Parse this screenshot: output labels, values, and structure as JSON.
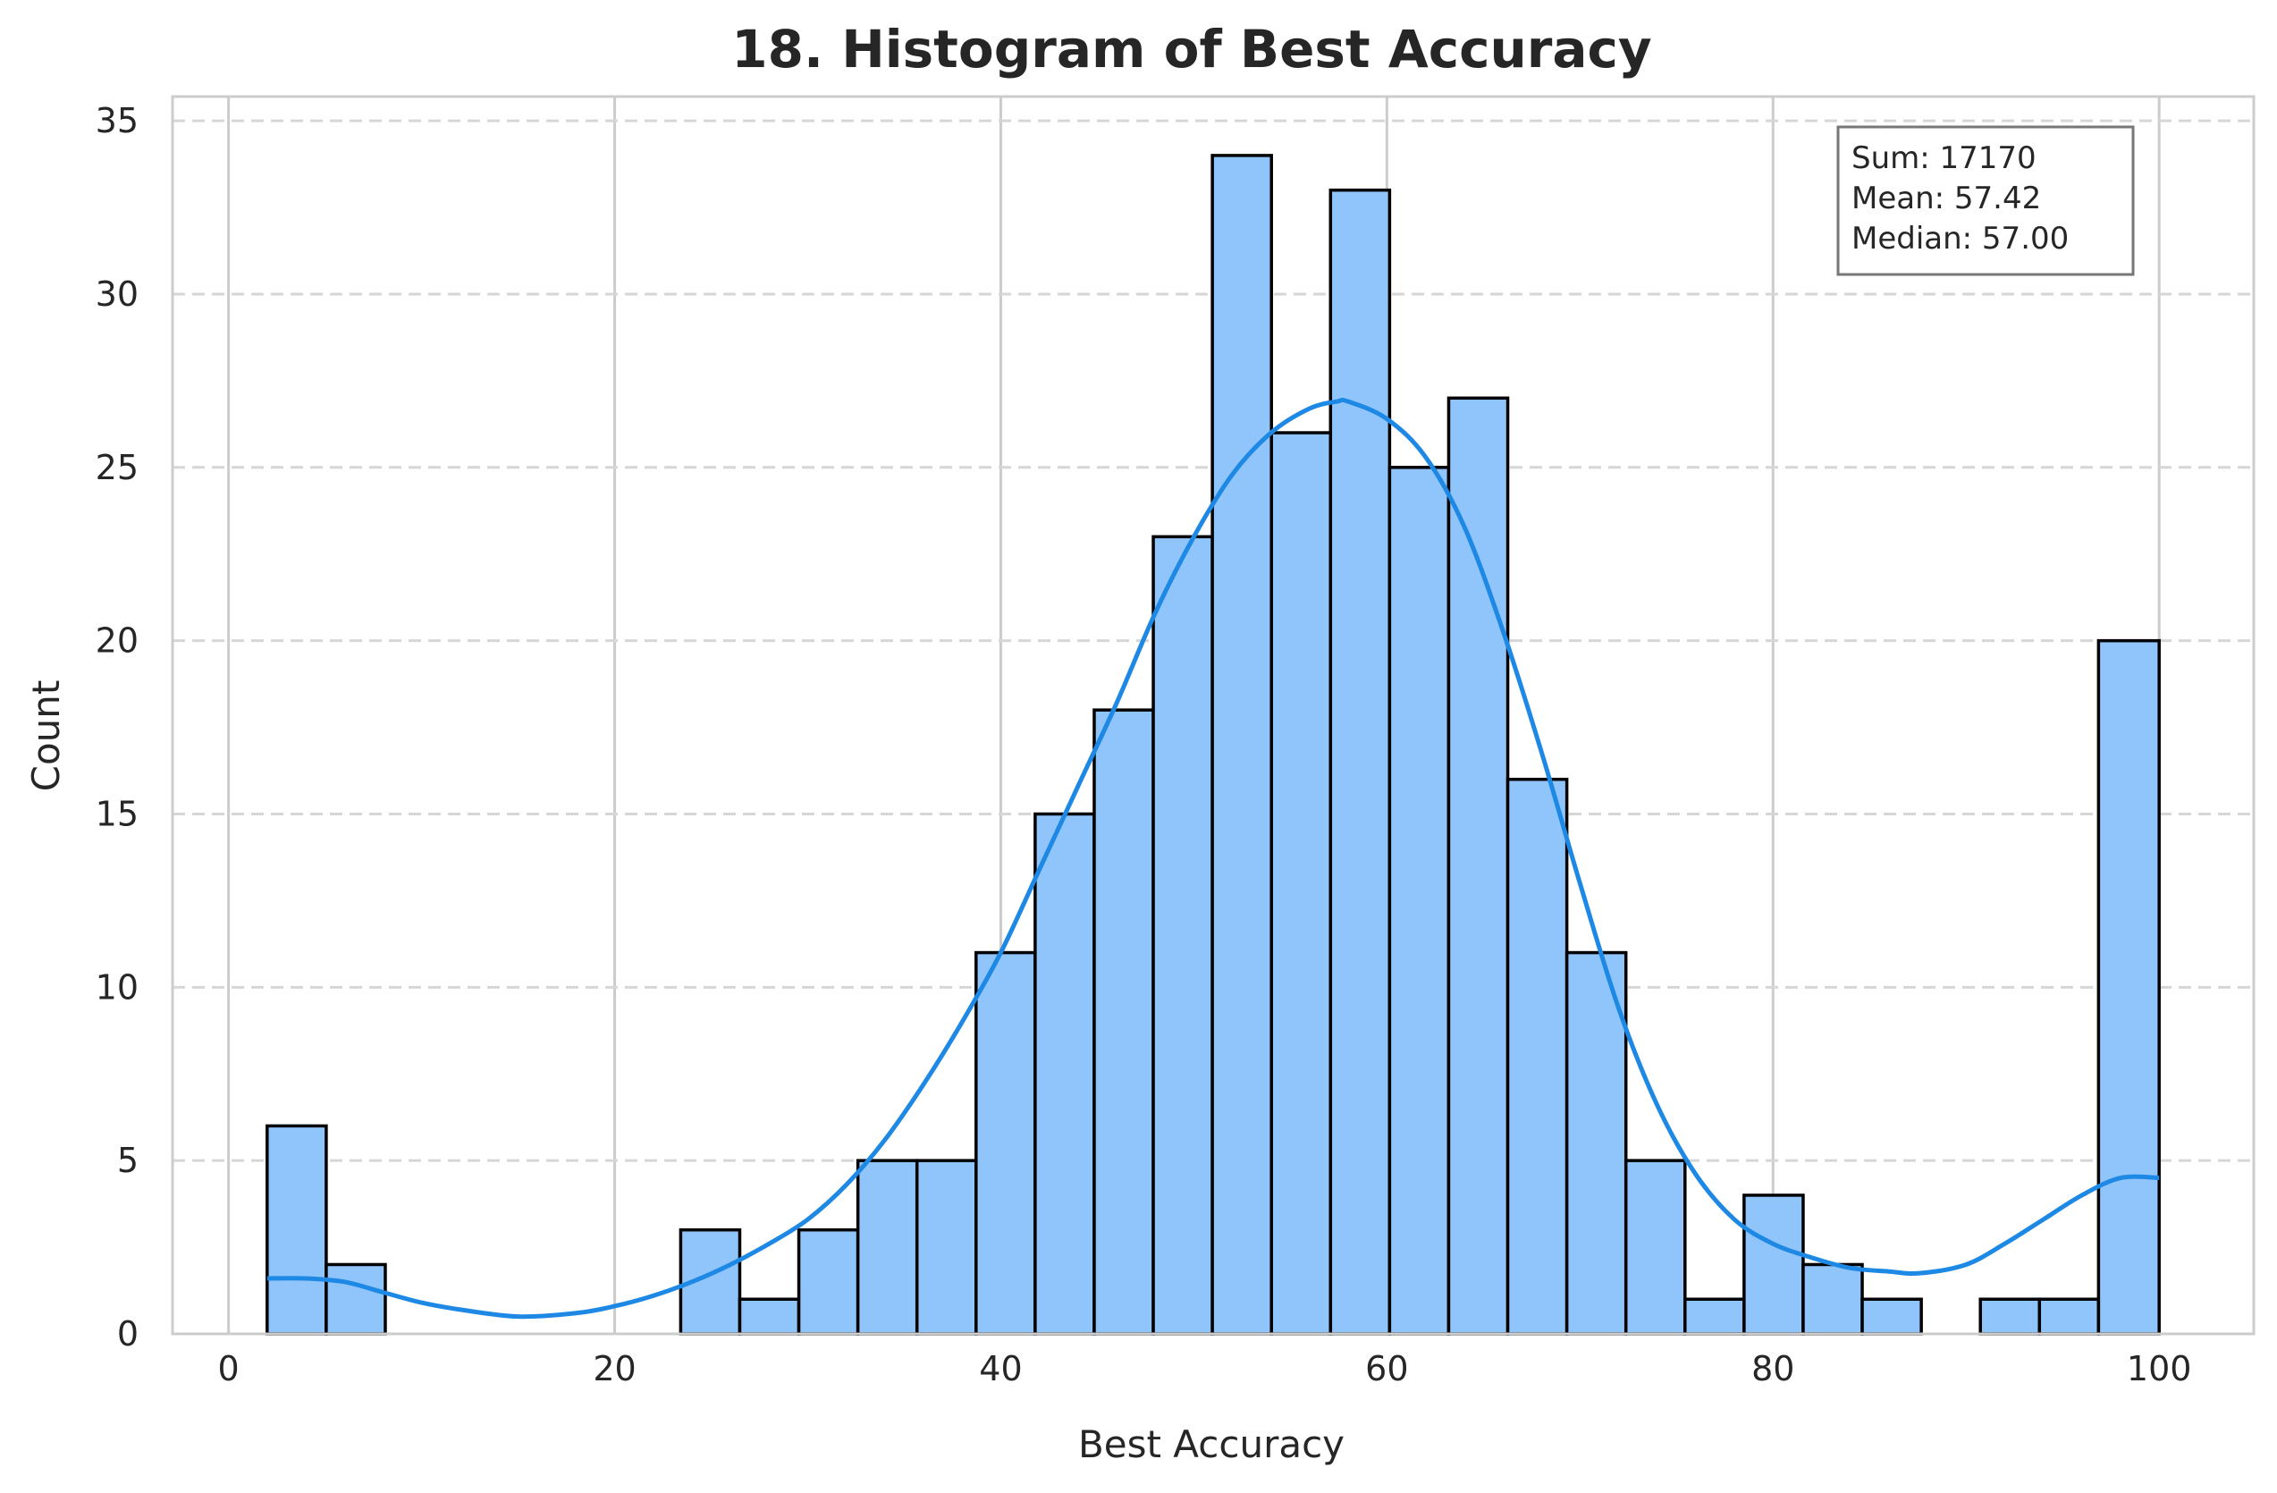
{
  "chart_data": {
    "type": "bar",
    "title": "18. Histogram of Best Accuracy",
    "xlabel": "Best Accuracy",
    "ylabel": "Count",
    "xlim": [
      -2.9,
      104.9
    ],
    "ylim": [
      0,
      35.7
    ],
    "xticks": [
      0,
      20,
      40,
      60,
      80,
      100
    ],
    "yticks": [
      0,
      5,
      10,
      15,
      20,
      25,
      30,
      35
    ],
    "grid": true,
    "bar_color": "#90c5fc",
    "edge_color": "#000000",
    "kde_color": "#1e88e5",
    "bins": [
      {
        "start": 2.0,
        "end": 5.06,
        "count": 6
      },
      {
        "start": 5.06,
        "end": 8.12,
        "count": 2
      },
      {
        "start": 8.12,
        "end": 11.18,
        "count": 0
      },
      {
        "start": 11.18,
        "end": 14.24,
        "count": 0
      },
      {
        "start": 14.24,
        "end": 17.3,
        "count": 0
      },
      {
        "start": 17.3,
        "end": 20.36,
        "count": 0
      },
      {
        "start": 20.36,
        "end": 23.42,
        "count": 0
      },
      {
        "start": 23.42,
        "end": 26.48,
        "count": 3
      },
      {
        "start": 26.48,
        "end": 29.54,
        "count": 1
      },
      {
        "start": 29.54,
        "end": 32.6,
        "count": 3
      },
      {
        "start": 32.6,
        "end": 35.66,
        "count": 5
      },
      {
        "start": 35.66,
        "end": 38.72,
        "count": 5
      },
      {
        "start": 38.72,
        "end": 41.78,
        "count": 11
      },
      {
        "start": 41.78,
        "end": 44.84,
        "count": 15
      },
      {
        "start": 44.84,
        "end": 47.9,
        "count": 18
      },
      {
        "start": 47.9,
        "end": 50.96,
        "count": 23
      },
      {
        "start": 50.96,
        "end": 54.02,
        "count": 34
      },
      {
        "start": 54.02,
        "end": 57.08,
        "count": 26
      },
      {
        "start": 57.08,
        "end": 60.14,
        "count": 33
      },
      {
        "start": 60.14,
        "end": 63.2,
        "count": 25
      },
      {
        "start": 63.2,
        "end": 66.26,
        "count": 27
      },
      {
        "start": 66.26,
        "end": 69.32,
        "count": 16
      },
      {
        "start": 69.32,
        "end": 72.38,
        "count": 11
      },
      {
        "start": 72.38,
        "end": 75.44,
        "count": 5
      },
      {
        "start": 75.44,
        "end": 78.5,
        "count": 1
      },
      {
        "start": 78.5,
        "end": 81.56,
        "count": 4
      },
      {
        "start": 81.56,
        "end": 84.62,
        "count": 2
      },
      {
        "start": 84.62,
        "end": 87.68,
        "count": 1
      },
      {
        "start": 87.68,
        "end": 90.74,
        "count": 0
      },
      {
        "start": 90.74,
        "end": 93.8,
        "count": 1
      },
      {
        "start": 93.8,
        "end": 96.86,
        "count": 1
      },
      {
        "start": 96.86,
        "end": 100.0,
        "count": 20
      }
    ],
    "kde": {
      "x": [
        2,
        4,
        6,
        8,
        10,
        12,
        15,
        18,
        20,
        22,
        24,
        26,
        28,
        30,
        32,
        34,
        36,
        38,
        40,
        42,
        44,
        46,
        48,
        50,
        52,
        54,
        56,
        57.4,
        58,
        60,
        62,
        64,
        66,
        68,
        70,
        72,
        74,
        76,
        78,
        80,
        82,
        84,
        86,
        87.6,
        90,
        92,
        94,
        96,
        98,
        100
      ],
      "y": [
        1.6,
        1.6,
        1.5,
        1.2,
        0.9,
        0.7,
        0.5,
        0.6,
        0.8,
        1.1,
        1.5,
        2.0,
        2.6,
        3.3,
        4.3,
        5.6,
        7.2,
        9.0,
        11.0,
        13.4,
        15.8,
        18.2,
        20.8,
        23.0,
        24.8,
        26.0,
        26.7,
        26.9,
        26.9,
        26.4,
        25.3,
        23.3,
        20.3,
        16.8,
        13.0,
        9.4,
        6.6,
        4.6,
        3.3,
        2.6,
        2.2,
        1.9,
        1.8,
        1.75,
        2.0,
        2.6,
        3.3,
        4.0,
        4.5,
        4.5
      ]
    },
    "annotation": {
      "lines": [
        "Sum: 17170",
        "Mean: 57.42",
        "Median: 57.00"
      ],
      "position": "top-right"
    }
  }
}
